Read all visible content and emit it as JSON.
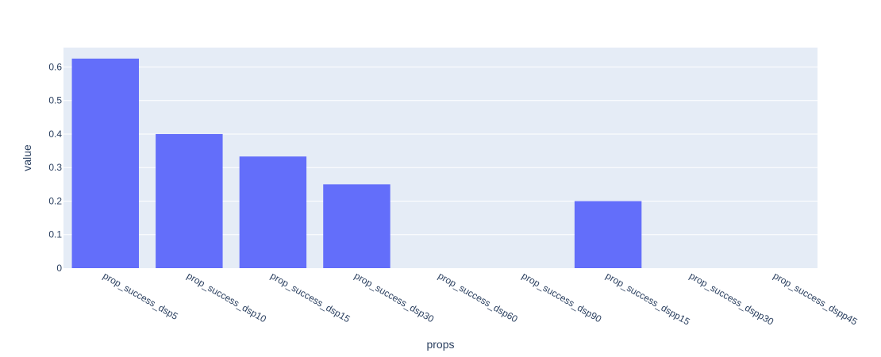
{
  "chart_data": {
    "type": "bar",
    "title": "",
    "xlabel": "props",
    "ylabel": "value",
    "categories": [
      "prop_success_dsp5",
      "prop_success_dsp10",
      "prop_success_dsp15",
      "prop_success_dsp30",
      "prop_success_dsp60",
      "prop_success_dsp90",
      "prop_success_dspp15",
      "prop_success_dspp30",
      "prop_success_dspp45"
    ],
    "values": [
      0.625,
      0.4,
      0.333,
      0.25,
      0,
      0,
      0.2,
      0,
      0
    ],
    "ylim": [
      0,
      0.6578
    ],
    "yticks": [
      "0",
      "0.1",
      "0.2",
      "0.3",
      "0.4",
      "0.5",
      "0.6"
    ],
    "ytick_values": [
      0,
      0.1,
      0.2,
      0.3,
      0.4,
      0.5,
      0.6
    ],
    "grid": true,
    "legend": "none",
    "colors": {
      "bar": "#636efa",
      "plot_bg": "#e5ecf6",
      "grid": "#ffffff",
      "text": "#2a3f5f"
    }
  }
}
